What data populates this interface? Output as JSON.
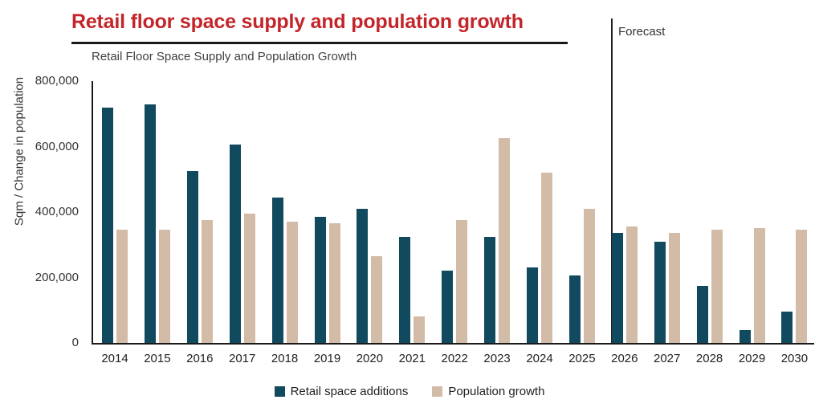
{
  "header": {
    "title": "Retail floor space supply and population growth"
  },
  "chart": {
    "subtitle": "Retail Floor Space Supply and Population Growth",
    "forecast_label": "Forecast",
    "y_axis_label": "Sqm / Change in population"
  },
  "colors": {
    "title_red": "#c3252a",
    "retail_bar": "#114a5f",
    "population_bar": "#d3bca7",
    "axis": "#1a1a1a"
  },
  "chart_data": {
    "type": "bar",
    "title": "Retail Floor Space Supply and Population Growth",
    "xlabel": "",
    "ylabel": "Sqm / Change in population",
    "ylim": [
      0,
      800000
    ],
    "yticks": [
      0,
      200000,
      400000,
      600000,
      800000
    ],
    "ytick_labels": [
      "0",
      "200,000",
      "400,000",
      "600,000",
      "800,000"
    ],
    "grid": false,
    "legend_position": "bottom",
    "forecast_start": 2026,
    "annotations": [
      "Forecast"
    ],
    "categories": [
      2014,
      2015,
      2016,
      2017,
      2018,
      2019,
      2020,
      2021,
      2022,
      2023,
      2024,
      2025,
      2026,
      2027,
      2028,
      2029,
      2030
    ],
    "series": [
      {
        "name": "Retail space additions",
        "color": "#114a5f",
        "values": [
          720000,
          730000,
          525000,
          605000,
          445000,
          385000,
          410000,
          325000,
          220000,
          325000,
          230000,
          205000,
          335000,
          310000,
          175000,
          40000,
          95000
        ]
      },
      {
        "name": "Population growth",
        "color": "#d3bca7",
        "values": [
          345000,
          345000,
          375000,
          395000,
          370000,
          365000,
          265000,
          80000,
          375000,
          625000,
          520000,
          410000,
          355000,
          335000,
          345000,
          350000,
          345000
        ]
      }
    ]
  }
}
